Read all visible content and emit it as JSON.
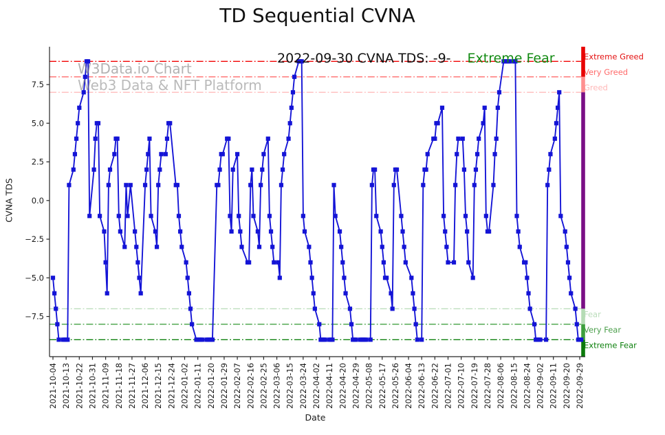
{
  "title": "TD Sequential CVNA",
  "annotation": {
    "date_text": "2022-09-30 CVNA TDS: -9-",
    "status_text": "Extreme Fear",
    "status_color": "#128a12"
  },
  "watermark": {
    "line1": "W3Data.io Chart",
    "line2": "Web3 Data & NFT Platform"
  },
  "chart_data": {
    "type": "line",
    "title": "TD Sequential CVNA",
    "xlabel": "Date",
    "ylabel": "CVNA TDS",
    "ylim": [
      -10.1,
      9.95
    ],
    "grid": false,
    "legend_position": "none",
    "line_color": "#1414d6",
    "marker": "square",
    "x_start_date": "2021-10-04",
    "x_tick_step_days": 9,
    "x_tick_labels": [
      "2021-10-04",
      "2021-10-13",
      "2021-10-22",
      "2021-10-31",
      "2021-11-09",
      "2021-11-18",
      "2021-11-27",
      "2021-12-06",
      "2021-12-15",
      "2021-12-24",
      "2022-01-02",
      "2022-01-11",
      "2022-01-20",
      "2022-01-29",
      "2022-02-07",
      "2022-02-16",
      "2022-02-25",
      "2022-03-06",
      "2022-03-15",
      "2022-03-24",
      "2022-04-02",
      "2022-04-11",
      "2022-04-20",
      "2022-04-29",
      "2022-05-08",
      "2022-05-17",
      "2022-05-26",
      "2022-06-04",
      "2022-06-13",
      "2022-06-22",
      "2022-07-01",
      "2022-07-10",
      "2022-07-19",
      "2022-07-28",
      "2022-08-06",
      "2022-08-15",
      "2022-08-24",
      "2022-09-02",
      "2022-09-11",
      "2022-09-20",
      "2022-09-29"
    ],
    "yticks": [
      {
        "label": "7.5",
        "value": 7.5
      },
      {
        "label": "5.0",
        "value": 5.0
      },
      {
        "label": "2.5",
        "value": 2.5
      },
      {
        "label": "0.0",
        "value": 0.0
      },
      {
        "label": "−2.5",
        "value": -2.5
      },
      {
        "label": "−5.0",
        "value": -5.0
      },
      {
        "label": "−7.5",
        "value": -7.5
      }
    ],
    "thresholds": [
      {
        "label": "Extreme Greed",
        "value": 9,
        "line_color": "#f20000",
        "label_color": "#e41212",
        "side": "greed"
      },
      {
        "label": "Very Greed",
        "value": 8,
        "line_color": "#ff6b6b",
        "label_color": "#ff6b6b",
        "side": "greed"
      },
      {
        "label": "Greed",
        "value": 7,
        "line_color": "#ffbcbc",
        "label_color": "#ffb8b8",
        "side": "greed"
      },
      {
        "label": "Fear",
        "value": -7,
        "line_color": "#bddebd",
        "label_color": "#b9dcb9",
        "side": "fear"
      },
      {
        "label": "Very Fear",
        "value": -8,
        "line_color": "#42a042",
        "label_color": "#4a9e4a",
        "side": "fear"
      },
      {
        "label": "Extreme Fear",
        "value": -9,
        "line_color": "#0d800d",
        "label_color": "#0d800d",
        "side": "fear"
      }
    ],
    "right_spine_segments": [
      {
        "from": 9.95,
        "to": 8,
        "color": "#e80000"
      },
      {
        "from": 8,
        "to": 7,
        "color": "#ff9090"
      },
      {
        "from": 7,
        "to": -7,
        "color": "#7a0f85"
      },
      {
        "from": -7,
        "to": -8,
        "color": "#b5dcb5"
      },
      {
        "from": -8,
        "to": -9,
        "color": "#3da03d"
      },
      {
        "from": -9,
        "to": -10.1,
        "color": "#0b7a0b"
      }
    ],
    "series": [
      {
        "name": "CVNA TDS",
        "points": [
          [
            0,
            -5
          ],
          [
            1,
            -6
          ],
          [
            2,
            -7
          ],
          [
            3,
            -8
          ],
          [
            4,
            -9
          ],
          [
            7,
            -9
          ],
          [
            8,
            -9
          ],
          [
            9,
            -9
          ],
          [
            10,
            -9
          ],
          [
            11,
            1
          ],
          [
            14,
            2
          ],
          [
            15,
            3
          ],
          [
            16,
            4
          ],
          [
            17,
            5
          ],
          [
            18,
            6
          ],
          [
            21,
            7
          ],
          [
            22,
            8
          ],
          [
            23,
            9
          ],
          [
            24,
            9
          ],
          [
            25,
            -1
          ],
          [
            28,
            2
          ],
          [
            29,
            4
          ],
          [
            30,
            5
          ],
          [
            31,
            5
          ],
          [
            32,
            -1
          ],
          [
            35,
            -2
          ],
          [
            36,
            -4
          ],
          [
            37,
            -6
          ],
          [
            38,
            1
          ],
          [
            39,
            2
          ],
          [
            42,
            3
          ],
          [
            43,
            4
          ],
          [
            44,
            4
          ],
          [
            45,
            -1
          ],
          [
            46,
            -2
          ],
          [
            49,
            -3
          ],
          [
            50,
            1
          ],
          [
            51,
            -1
          ],
          [
            53,
            1
          ],
          [
            56,
            -2
          ],
          [
            57,
            -3
          ],
          [
            58,
            -4
          ],
          [
            59,
            -5
          ],
          [
            60,
            -6
          ],
          [
            63,
            1
          ],
          [
            64,
            2
          ],
          [
            65,
            3
          ],
          [
            66,
            4
          ],
          [
            67,
            -1
          ],
          [
            70,
            -2
          ],
          [
            71,
            -3
          ],
          [
            72,
            1
          ],
          [
            73,
            2
          ],
          [
            74,
            3
          ],
          [
            77,
            3
          ],
          [
            78,
            4
          ],
          [
            79,
            5
          ],
          [
            80,
            5
          ],
          [
            84,
            1
          ],
          [
            85,
            1
          ],
          [
            86,
            -1
          ],
          [
            87,
            -2
          ],
          [
            88,
            -3
          ],
          [
            91,
            -4
          ],
          [
            92,
            -5
          ],
          [
            93,
            -6
          ],
          [
            94,
            -7
          ],
          [
            95,
            -8
          ],
          [
            98,
            -9
          ],
          [
            99,
            -9
          ],
          [
            100,
            -9
          ],
          [
            101,
            -9
          ],
          [
            102,
            -9
          ],
          [
            105,
            -9
          ],
          [
            106,
            -9
          ],
          [
            107,
            -9
          ],
          [
            108,
            -9
          ],
          [
            109,
            -9
          ],
          [
            112,
            1
          ],
          [
            113,
            1
          ],
          [
            114,
            2
          ],
          [
            115,
            3
          ],
          [
            116,
            3
          ],
          [
            119,
            4
          ],
          [
            120,
            4
          ],
          [
            121,
            -1
          ],
          [
            122,
            -2
          ],
          [
            123,
            2
          ],
          [
            126,
            3
          ],
          [
            127,
            -1
          ],
          [
            128,
            -2
          ],
          [
            129,
            -3
          ],
          [
            133,
            -4
          ],
          [
            134,
            -4
          ],
          [
            135,
            1
          ],
          [
            136,
            2
          ],
          [
            137,
            -1
          ],
          [
            140,
            -2
          ],
          [
            141,
            -3
          ],
          [
            142,
            1
          ],
          [
            143,
            2
          ],
          [
            144,
            3
          ],
          [
            147,
            4
          ],
          [
            148,
            -1
          ],
          [
            149,
            -2
          ],
          [
            150,
            -3
          ],
          [
            151,
            -4
          ],
          [
            154,
            -4
          ],
          [
            155,
            -5
          ],
          [
            156,
            1
          ],
          [
            157,
            2
          ],
          [
            158,
            3
          ],
          [
            161,
            4
          ],
          [
            162,
            5
          ],
          [
            163,
            6
          ],
          [
            164,
            7
          ],
          [
            165,
            8
          ],
          [
            168,
            9
          ],
          [
            169,
            9
          ],
          [
            170,
            9
          ],
          [
            171,
            -1
          ],
          [
            172,
            -2
          ],
          [
            175,
            -3
          ],
          [
            176,
            -4
          ],
          [
            177,
            -5
          ],
          [
            178,
            -6
          ],
          [
            179,
            -7
          ],
          [
            182,
            -8
          ],
          [
            183,
            -9
          ],
          [
            184,
            -9
          ],
          [
            185,
            -9
          ],
          [
            186,
            -9
          ],
          [
            189,
            -9
          ],
          [
            190,
            -9
          ],
          [
            191,
            -9
          ],
          [
            192,
            1
          ],
          [
            193,
            -1
          ],
          [
            196,
            -2
          ],
          [
            197,
            -3
          ],
          [
            198,
            -4
          ],
          [
            199,
            -5
          ],
          [
            200,
            -6
          ],
          [
            203,
            -7
          ],
          [
            204,
            -8
          ],
          [
            205,
            -9
          ],
          [
            206,
            -9
          ],
          [
            207,
            -9
          ],
          [
            210,
            -9
          ],
          [
            211,
            -9
          ],
          [
            212,
            -9
          ],
          [
            213,
            -9
          ],
          [
            214,
            -9
          ],
          [
            217,
            -9
          ],
          [
            218,
            1
          ],
          [
            219,
            2
          ],
          [
            220,
            2
          ],
          [
            221,
            -1
          ],
          [
            224,
            -2
          ],
          [
            225,
            -3
          ],
          [
            226,
            -4
          ],
          [
            227,
            -5
          ],
          [
            228,
            -5
          ],
          [
            231,
            -6
          ],
          [
            232,
            -7
          ],
          [
            233,
            1
          ],
          [
            234,
            2
          ],
          [
            235,
            2
          ],
          [
            238,
            -1
          ],
          [
            239,
            -2
          ],
          [
            240,
            -3
          ],
          [
            241,
            -4
          ],
          [
            245,
            -5
          ],
          [
            246,
            -6
          ],
          [
            247,
            -7
          ],
          [
            248,
            -8
          ],
          [
            249,
            -9
          ],
          [
            252,
            -9
          ],
          [
            253,
            1
          ],
          [
            254,
            2
          ],
          [
            255,
            2
          ],
          [
            256,
            3
          ],
          [
            260,
            4
          ],
          [
            261,
            4
          ],
          [
            262,
            5
          ],
          [
            263,
            5
          ],
          [
            266,
            6
          ],
          [
            267,
            -1
          ],
          [
            268,
            -2
          ],
          [
            269,
            -3
          ],
          [
            270,
            -4
          ],
          [
            274,
            -4
          ],
          [
            275,
            1
          ],
          [
            276,
            3
          ],
          [
            277,
            4
          ],
          [
            280,
            4
          ],
          [
            281,
            2
          ],
          [
            282,
            -1
          ],
          [
            283,
            -2
          ],
          [
            284,
            -4
          ],
          [
            287,
            -5
          ],
          [
            288,
            1
          ],
          [
            289,
            2
          ],
          [
            290,
            3
          ],
          [
            291,
            4
          ],
          [
            294,
            5
          ],
          [
            295,
            6
          ],
          [
            296,
            -1
          ],
          [
            297,
            -2
          ],
          [
            298,
            -2
          ],
          [
            301,
            1
          ],
          [
            302,
            3
          ],
          [
            303,
            4
          ],
          [
            304,
            6
          ],
          [
            305,
            7
          ],
          [
            308,
            9
          ],
          [
            309,
            9
          ],
          [
            310,
            9
          ],
          [
            311,
            9
          ],
          [
            312,
            9
          ],
          [
            315,
            9
          ],
          [
            316,
            9
          ],
          [
            317,
            -1
          ],
          [
            318,
            -2
          ],
          [
            319,
            -3
          ],
          [
            322,
            -4
          ],
          [
            323,
            -4
          ],
          [
            324,
            -5
          ],
          [
            325,
            -6
          ],
          [
            326,
            -7
          ],
          [
            329,
            -8
          ],
          [
            330,
            -9
          ],
          [
            331,
            -9
          ],
          [
            332,
            -9
          ],
          [
            333,
            -9
          ],
          [
            337,
            -9
          ],
          [
            338,
            1
          ],
          [
            339,
            2
          ],
          [
            340,
            3
          ],
          [
            343,
            4
          ],
          [
            344,
            5
          ],
          [
            345,
            6
          ],
          [
            346,
            7
          ],
          [
            347,
            -1
          ],
          [
            350,
            -2
          ],
          [
            351,
            -3
          ],
          [
            352,
            -4
          ],
          [
            353,
            -5
          ],
          [
            354,
            -6
          ],
          [
            357,
            -7
          ],
          [
            358,
            -8
          ],
          [
            359,
            -9
          ],
          [
            360,
            -9
          ],
          [
            361,
            -9
          ]
        ]
      }
    ]
  }
}
